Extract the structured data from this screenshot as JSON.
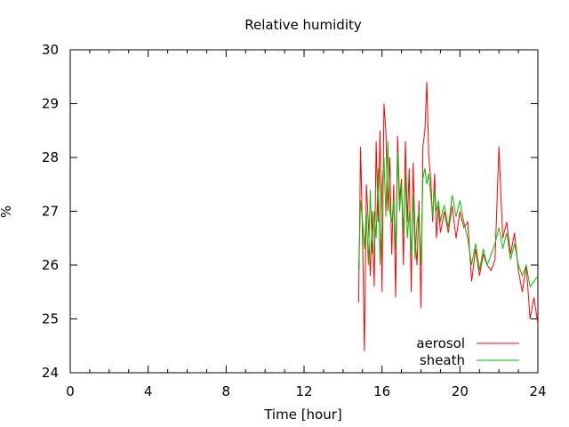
{
  "chart_data": {
    "type": "line",
    "title": "Relative humidity",
    "xlabel": "Time [hour]",
    "ylabel": "%",
    "xlim": [
      0,
      24
    ],
    "ylim": [
      24,
      30
    ],
    "xticks": [
      0,
      4,
      8,
      12,
      16,
      20,
      24
    ],
    "yticks": [
      24,
      25,
      26,
      27,
      28,
      29,
      30
    ],
    "grid": false,
    "legend_position": "bottom-right",
    "series": [
      {
        "name": "aerosol",
        "color": "#ff0000",
        "x": [
          14.8,
          14.9,
          15.0,
          15.1,
          15.2,
          15.3,
          15.4,
          15.5,
          15.6,
          15.7,
          15.8,
          15.9,
          16.0,
          16.1,
          16.2,
          16.3,
          16.4,
          16.5,
          16.6,
          16.7,
          16.8,
          16.9,
          17.0,
          17.1,
          17.2,
          17.3,
          17.4,
          17.5,
          17.6,
          17.7,
          17.8,
          17.9,
          18.0,
          18.1,
          18.2,
          18.3,
          18.4,
          18.5,
          18.6,
          18.7,
          18.8,
          18.9,
          19.0,
          19.1,
          19.2,
          19.4,
          19.6,
          19.8,
          20.0,
          20.2,
          20.4,
          20.6,
          20.8,
          21.0,
          21.2,
          21.4,
          21.6,
          21.8,
          22.0,
          22.2,
          22.4,
          22.6,
          22.8,
          23.0,
          23.2,
          23.4,
          23.6,
          23.8,
          24.0
        ],
        "y": [
          25.3,
          28.2,
          26.5,
          24.4,
          27.5,
          26.8,
          25.8,
          27.0,
          25.6,
          28.3,
          26.8,
          28.5,
          25.5,
          29.0,
          28.5,
          27.0,
          28.0,
          26.2,
          27.5,
          25.4,
          28.4,
          27.2,
          27.6,
          26.0,
          28.3,
          26.8,
          27.8,
          25.5,
          27.9,
          26.5,
          26.0,
          27.2,
          25.2,
          28.2,
          28.5,
          29.4,
          28.0,
          27.6,
          26.8,
          27.7,
          26.5,
          27.1,
          26.6,
          26.8,
          27.0,
          26.6,
          27.1,
          26.5,
          27.0,
          26.7,
          26.8,
          25.7,
          26.3,
          25.8,
          26.2,
          26.0,
          25.9,
          26.1,
          28.2,
          26.5,
          26.8,
          26.2,
          26.6,
          25.9,
          25.5,
          26.0,
          25.0,
          25.4,
          24.9
        ]
      },
      {
        "name": "sheath",
        "color": "#00c000",
        "x": [
          14.8,
          14.9,
          15.0,
          15.1,
          15.2,
          15.3,
          15.4,
          15.5,
          15.6,
          15.7,
          15.8,
          15.9,
          16.0,
          16.1,
          16.2,
          16.3,
          16.4,
          16.5,
          16.6,
          16.7,
          16.8,
          16.9,
          17.0,
          17.1,
          17.2,
          17.3,
          17.4,
          17.5,
          17.6,
          17.7,
          17.8,
          17.9,
          18.0,
          18.1,
          18.2,
          18.3,
          18.4,
          18.5,
          18.6,
          18.7,
          18.8,
          18.9,
          19.0,
          19.1,
          19.2,
          19.4,
          19.6,
          19.8,
          20.0,
          20.2,
          20.4,
          20.6,
          20.8,
          21.0,
          21.2,
          21.4,
          21.6,
          21.8,
          22.0,
          22.2,
          22.4,
          22.6,
          22.8,
          23.0,
          23.2,
          23.4,
          23.6,
          23.8,
          24.0
        ],
        "y": [
          25.9,
          27.2,
          26.8,
          26.3,
          27.0,
          26.0,
          27.4,
          26.2,
          27.0,
          26.5,
          27.8,
          26.0,
          27.5,
          28.0,
          26.9,
          28.3,
          27.0,
          26.8,
          27.2,
          26.3,
          28.1,
          27.0,
          27.5,
          26.6,
          27.7,
          26.5,
          27.0,
          26.2,
          27.3,
          26.1,
          26.8,
          27.0,
          26.0,
          27.6,
          27.8,
          27.5,
          27.7,
          27.3,
          26.9,
          27.4,
          27.0,
          27.2,
          26.8,
          27.0,
          27.1,
          26.7,
          27.3,
          26.9,
          27.2,
          26.8,
          26.5,
          26.0,
          26.4,
          25.9,
          26.3,
          26.0,
          26.2,
          26.4,
          26.7,
          26.3,
          26.6,
          26.1,
          26.4,
          26.0,
          25.8,
          26.0,
          25.6,
          25.7,
          25.8
        ]
      }
    ]
  }
}
